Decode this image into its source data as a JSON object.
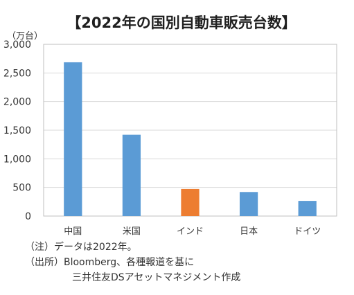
{
  "chart_data": {
    "type": "bar",
    "title": "【2022年の国別自動車販売台数】",
    "unit_label": "（万台）",
    "categories": [
      "中国",
      "米国",
      "インド",
      "日本",
      "ドイツ"
    ],
    "values": [
      2686,
      1420,
      473,
      420,
      265
    ],
    "ylim": [
      0,
      3000
    ],
    "yticks": [
      "0",
      "500",
      "1,000",
      "1,500",
      "2,000",
      "2,500",
      "3,000"
    ],
    "ytick_values": [
      0,
      500,
      1000,
      1500,
      2000,
      2500,
      3000
    ],
    "grid": true,
    "legend": "none",
    "colors": {
      "default_bar": "#5b9bd5",
      "highlight_bar": "#ed7d31",
      "grid": "#d9d9d9",
      "axis": "#bfbfbf"
    },
    "highlight_index": 2
  },
  "notes": {
    "line1": "（注）データは2022年。",
    "line2": "（出所）Bloomberg、各種報道を基に",
    "line3": "三井住友DSアセットマネジメント作成"
  }
}
